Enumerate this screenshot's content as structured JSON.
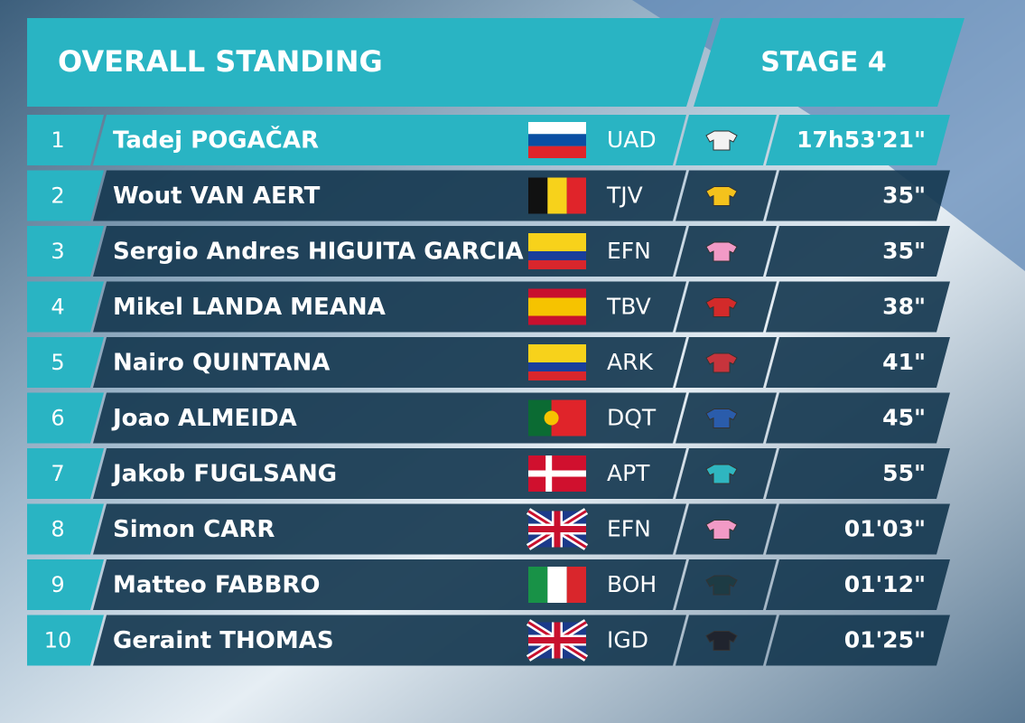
{
  "header": {
    "title": "OVERALL STANDING",
    "stage": "STAGE 4"
  },
  "table": {
    "rows": [
      {
        "rank": 1,
        "name": "Tadej POGAČAR",
        "team": "UAD",
        "time": "17h53'21\""
      },
      {
        "rank": 2,
        "name": "Wout VAN AERT",
        "team": "TJV",
        "time": "35\""
      },
      {
        "rank": 3,
        "name": "Sergio Andres HIGUITA GARCIA",
        "team": "EFN",
        "time": "35\""
      },
      {
        "rank": 4,
        "name": "Mikel LANDA MEANA",
        "team": "TBV",
        "time": "38\""
      },
      {
        "rank": 5,
        "name": "Nairo QUINTANA",
        "team": "ARK",
        "time": "41\""
      },
      {
        "rank": 6,
        "name": "Joao ALMEIDA",
        "team": "DQT",
        "time": "45\""
      },
      {
        "rank": 7,
        "name": "Jakob FUGLSANG",
        "team": "APT",
        "time": "55\""
      },
      {
        "rank": 8,
        "name": "Simon CARR",
        "team": "EFN",
        "time": "01'03\""
      },
      {
        "rank": 9,
        "name": "Matteo FABBRO",
        "team": "BOH",
        "time": "01'12\""
      },
      {
        "rank": 10,
        "name": "Geraint THOMAS",
        "team": "IGD",
        "time": "01'25\""
      }
    ]
  }
}
